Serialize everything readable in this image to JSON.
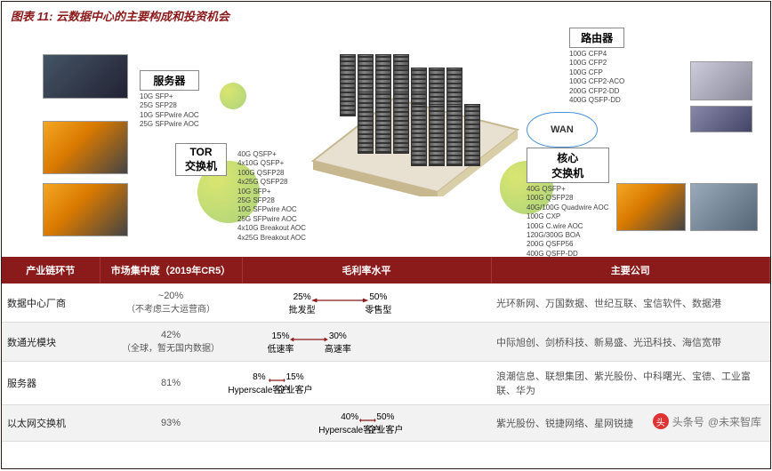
{
  "title": "图表 11: 云数据中心的主要构成和投资机会",
  "callouts": {
    "server": {
      "label": "服务器",
      "specs": [
        "10G SFP+",
        "25G SFP28",
        "10G SFPwire AOC",
        "25G SFPwire AOC"
      ]
    },
    "tor": {
      "label": "TOR\n交换机",
      "specs": [
        "40G QSFP+",
        "4x10G QSFP+",
        "100G QSFP28",
        "4x25G QSFP28",
        "10G SFP+",
        "25G SFP28",
        "10G SFPwire AOC",
        "25G SFPwire AOC",
        "4x10G Breakout AOC",
        "4x25G Breakout AOC"
      ]
    },
    "router": {
      "label": "路由器",
      "specs": [
        "100G CFP4",
        "100G CFP2",
        "100G CFP",
        "100G CFP2-ACO",
        "200G CFP2-DD",
        "400G QSFP-DD"
      ]
    },
    "core": {
      "label": "核心\n交换机",
      "specs": [
        "40G QSFP+",
        "100G QSFP28",
        "40G/100G Quadwire AOC",
        "100G CXP",
        "100G C.wire AOC",
        "120G/300G BOA",
        "200G QSFP56",
        "400G QSFP-DD"
      ]
    }
  },
  "wan": "WAN",
  "table": {
    "headers": [
      "产业链环节",
      "市场集中度（2019年CR5）",
      "毛利率水平",
      "主要公司"
    ],
    "rows": [
      {
        "seg": "数据中心厂商",
        "crs": "~20%",
        "crs_sub": "（不考虑三大运营商）",
        "margin": {
          "lowPct": "25%",
          "lowLbl": "批发型",
          "highPct": "50%",
          "highLbl": "零售型",
          "lowPos": 23,
          "highPos": 55
        },
        "companies": "光环新网、万国数据、世纪互联、宝信软件、数据港"
      },
      {
        "seg": "数通光模块",
        "crs": "42%",
        "crs_sub": "（全球，暂无国内数据）",
        "margin": {
          "lowPct": "15%",
          "lowLbl": "低速率",
          "highPct": "30%",
          "highLbl": "高速率",
          "lowPos": 14,
          "highPos": 38
        },
        "companies": "中际旭创、剑桥科技、新易盛、光迅科技、海信宽带"
      },
      {
        "seg": "服务器",
        "crs": "81%",
        "crs_sub": "",
        "margin": {
          "lowPct": "8%",
          "lowLbl": "Hyperscale客户",
          "highPct": "15%",
          "highLbl": "企业客户",
          "lowPos": 5,
          "highPos": 20
        },
        "companies": "浪潮信息、联想集团、紫光股份、中科曙光、宝德、工业富联、华为"
      },
      {
        "seg": "以太网交换机",
        "crs": "93%",
        "crs_sub": "",
        "margin": {
          "lowPct": "40%",
          "lowLbl": "Hyperscale客户",
          "highPct": "50%",
          "highLbl": "企业客户",
          "lowPos": 43,
          "highPos": 58
        },
        "companies": "紫光股份、锐捷网络、星网锐捷"
      }
    ]
  },
  "watermark": {
    "prefix": "头条号",
    "name": "@未来智库"
  },
  "colors": {
    "header_bg": "#8b1a1a",
    "arrow": "#8b1a1a"
  }
}
